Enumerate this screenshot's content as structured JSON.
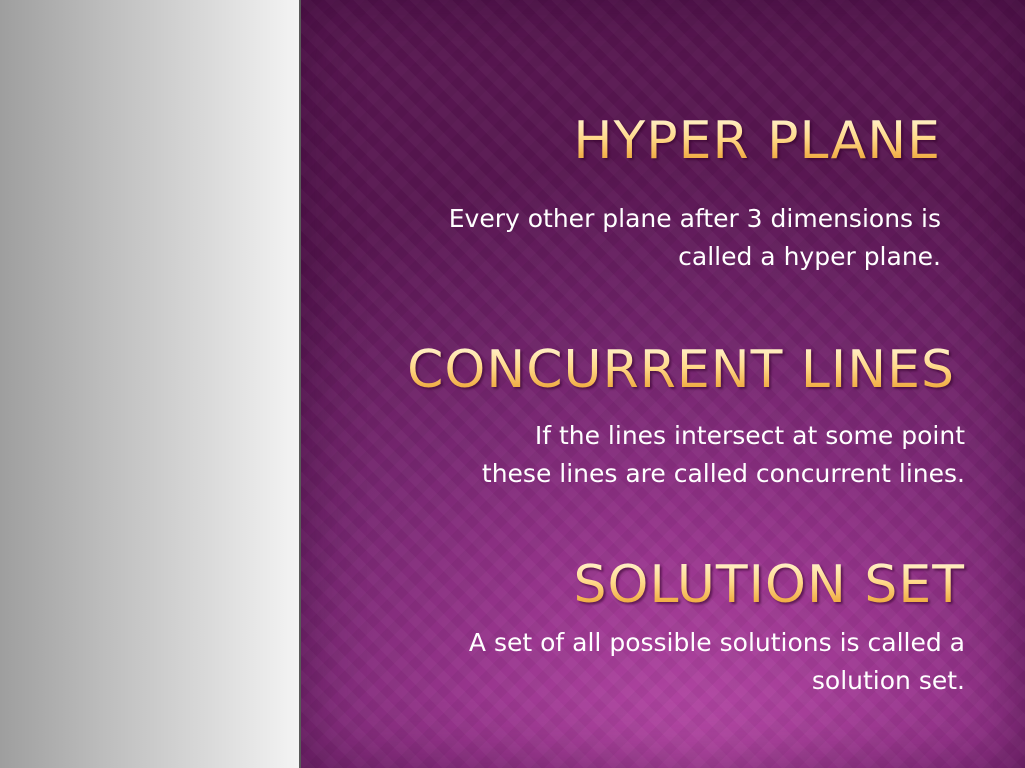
{
  "slide": {
    "colors": {
      "left_panel": "#bdbdbd",
      "background": "#98358d",
      "heading": "#ffd98a",
      "body_text": "#ffffff"
    },
    "sections": [
      {
        "heading": "HYPER PLANE",
        "body_lines": [
          "Every other plane after 3 dimensions is",
          "called a hyper plane."
        ]
      },
      {
        "heading": "CONCURRENT LINES",
        "body_lines": [
          "If the lines intersect at some point",
          "these lines are called concurrent lines."
        ]
      },
      {
        "heading": "SOLUTION SET",
        "body_lines": [
          "A set of all possible solutions is called a",
          "solution set."
        ]
      }
    ]
  }
}
